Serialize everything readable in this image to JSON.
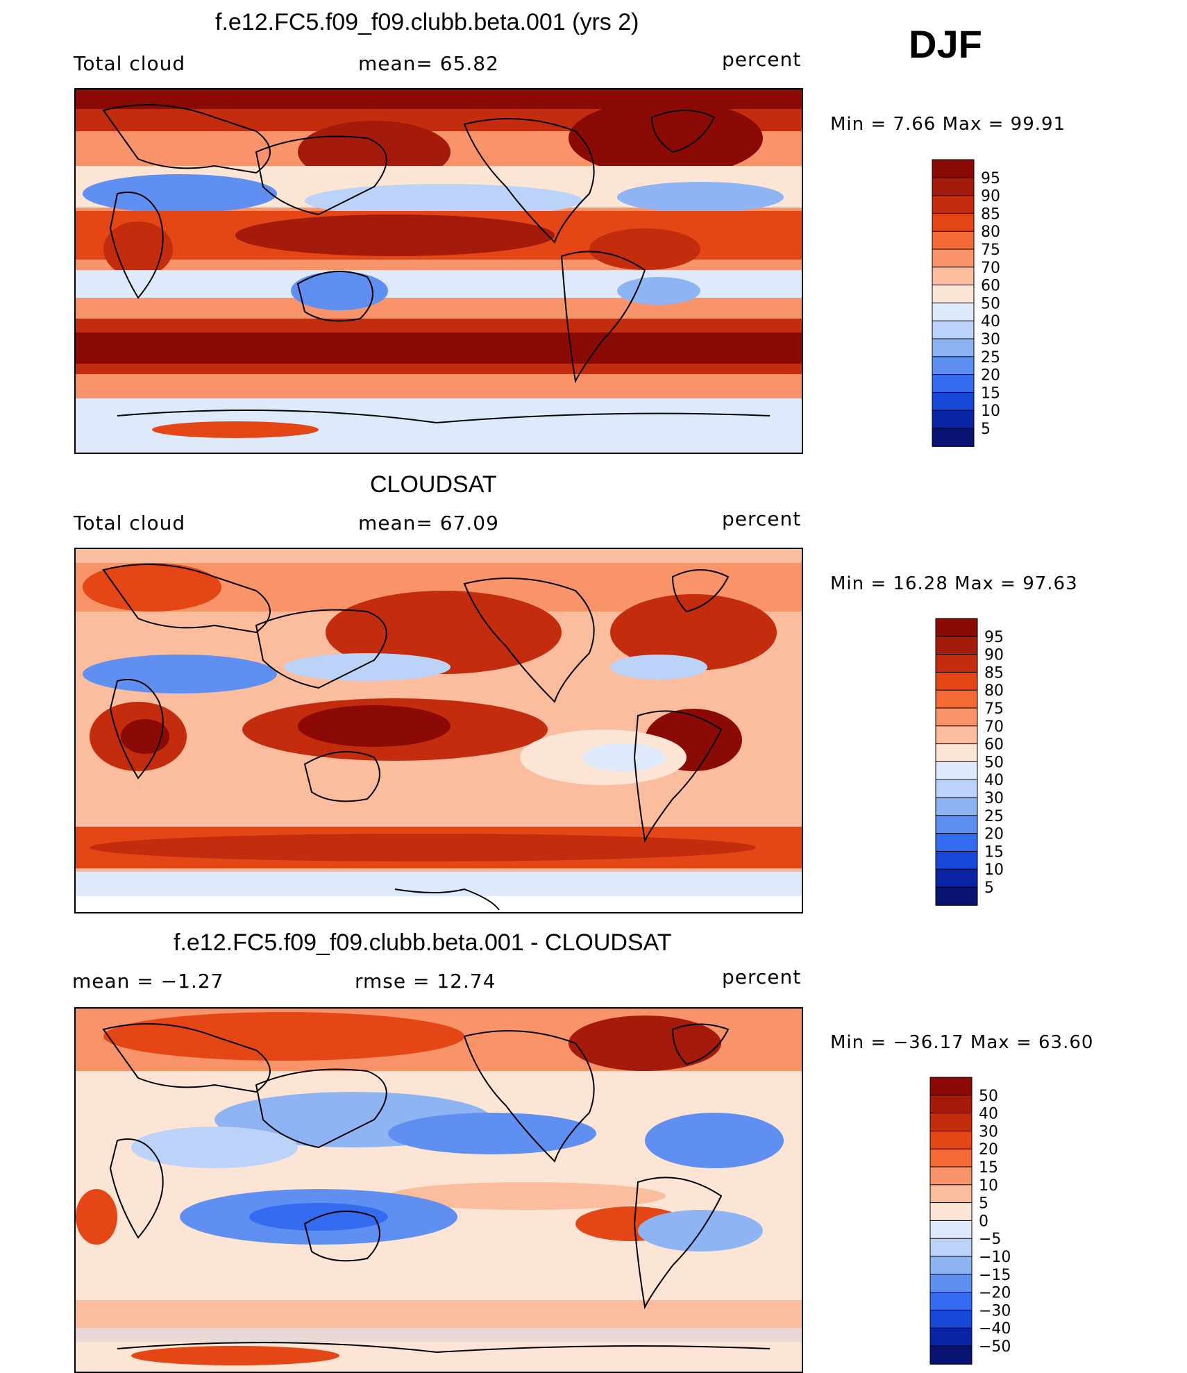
{
  "season": "DJF",
  "panels": [
    {
      "title": "f.e12.FC5.f09_f09.clubb.beta.001 (yrs 2)",
      "left": "Total cloud",
      "center": "mean=   65.82",
      "right": "percent",
      "minmax": "Min =    7.66 Max =   99.91",
      "legend": [
        "95",
        "90",
        "85",
        "80",
        "75",
        "70",
        "60",
        "50",
        "40",
        "30",
        "25",
        "20",
        "15",
        "10",
        "5"
      ],
      "colors": [
        "#8b0a05",
        "#a41a0b",
        "#c42c0e",
        "#e54615",
        "#f46a36",
        "#f8936a",
        "#fbbd9e",
        "#fde5d6",
        "#deeafb",
        "#bbd3f8",
        "#8fb4f4",
        "#5f8ff0",
        "#336cf0",
        "#1747d6",
        "#0a24a6",
        "#081270"
      ]
    },
    {
      "title": "CLOUDSAT",
      "left": "Total cloud",
      "center": "mean=   67.09",
      "right": "percent",
      "minmax": "Min =   16.28 Max =   97.63",
      "legend": [
        "95",
        "90",
        "85",
        "80",
        "75",
        "70",
        "60",
        "50",
        "40",
        "30",
        "25",
        "20",
        "15",
        "10",
        "5"
      ],
      "colors": [
        "#8b0a05",
        "#a41a0b",
        "#c42c0e",
        "#e54615",
        "#f46a36",
        "#f8936a",
        "#fbbd9e",
        "#fde5d6",
        "#deeafb",
        "#bbd3f8",
        "#8fb4f4",
        "#5f8ff0",
        "#336cf0",
        "#1747d6",
        "#0a24a6",
        "#081270"
      ]
    },
    {
      "title": "f.e12.FC5.f09_f09.clubb.beta.001 - CLOUDSAT",
      "left": "mean =   −1.27",
      "center": "rmse =   12.74",
      "right": "percent",
      "minmax": "Min = −36.17 Max =   63.60",
      "legend": [
        "50",
        "40",
        "30",
        "20",
        "15",
        "10",
        "5",
        "0",
        "−5",
        "−10",
        "−15",
        "−20",
        "−30",
        "−40",
        "−50"
      ],
      "colors": [
        "#8b0a05",
        "#a41a0b",
        "#c42c0e",
        "#e54615",
        "#f46a36",
        "#f8936a",
        "#fbbd9e",
        "#fde5d6",
        "#deeafb",
        "#bbd3f8",
        "#8fb4f4",
        "#5f8ff0",
        "#336cf0",
        "#1747d6",
        "#0a24a6",
        "#081270"
      ]
    }
  ]
}
